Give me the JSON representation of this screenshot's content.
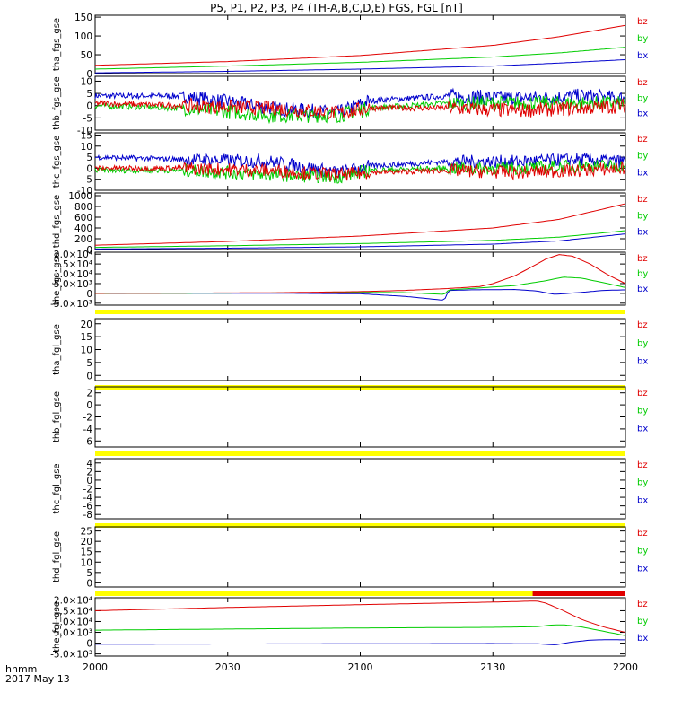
{
  "title": "P5, P1, P2, P3, P4 (TH-A,B,C,D,E) FGS, FGL [nT]",
  "time_axis": {
    "label_line1": "hhmm",
    "label_line2": "2017 May 13",
    "ticks": [
      "2000",
      "2030",
      "2100",
      "2130",
      "2200"
    ],
    "range_minutes": [
      0,
      120
    ]
  },
  "colors": {
    "bz": "#e00000",
    "by": "#00cc00",
    "bx": "#0000cc",
    "flag_yellow": "#ffff00",
    "flag_red": "#e00000"
  },
  "chart_data": [
    {
      "type": "line",
      "name": "tha_fgs_gse",
      "ylim": [
        0,
        155
      ],
      "yticks": [
        "0",
        "50",
        "100",
        "150"
      ],
      "yvals": [
        0,
        50,
        100,
        150
      ],
      "legend": [
        "bz",
        "by",
        "bx"
      ],
      "series": [
        {
          "name": "bz",
          "x": [
            0,
            30,
            60,
            90,
            105,
            120
          ],
          "y": [
            22,
            32,
            48,
            75,
            98,
            128
          ]
        },
        {
          "name": "by",
          "x": [
            0,
            30,
            60,
            90,
            105,
            120
          ],
          "y": [
            12,
            20,
            30,
            44,
            55,
            70
          ]
        },
        {
          "name": "bx",
          "x": [
            0,
            30,
            60,
            90,
            105,
            120
          ],
          "y": [
            2,
            6,
            12,
            20,
            28,
            37
          ]
        }
      ]
    },
    {
      "type": "line",
      "name": "thb_fgs_gse",
      "ylim": [
        -10,
        12
      ],
      "yticks": [
        "-10",
        "-5",
        "0",
        "5",
        "10"
      ],
      "yvals": [
        -10,
        -5,
        0,
        5,
        10
      ],
      "legend": [
        "bz",
        "by",
        "bx"
      ],
      "series": [
        {
          "name": "bz",
          "x": [
            0,
            20,
            40,
            55,
            62,
            80,
            95,
            110,
            120
          ],
          "y": [
            1,
            0,
            -1,
            -3,
            -1,
            -1,
            -2,
            -1,
            0
          ]
        },
        {
          "name": "by",
          "x": [
            0,
            20,
            40,
            55,
            62,
            80,
            95,
            110,
            120
          ],
          "y": [
            0,
            -1,
            -4,
            -4,
            -1,
            1,
            1,
            1,
            1
          ]
        },
        {
          "name": "bx",
          "x": [
            0,
            20,
            40,
            55,
            62,
            80,
            95,
            110,
            120
          ],
          "y": [
            4,
            4,
            -1,
            -3,
            2,
            4,
            3,
            4,
            3
          ]
        }
      ]
    },
    {
      "type": "line",
      "name": "thc_fgs_gse",
      "ylim": [
        -10,
        16
      ],
      "yticks": [
        "-10",
        "-5",
        "0",
        "5",
        "10",
        "15"
      ],
      "yvals": [
        -10,
        -5,
        0,
        5,
        10,
        15
      ],
      "legend": [
        "bz",
        "by",
        "bx"
      ],
      "series": [
        {
          "name": "bz",
          "x": [
            0,
            20,
            40,
            55,
            62,
            80,
            95,
            110,
            120
          ],
          "y": [
            0,
            0,
            -1,
            -3,
            -2,
            -1,
            -2,
            -1,
            0
          ]
        },
        {
          "name": "by",
          "x": [
            0,
            20,
            40,
            55,
            62,
            80,
            95,
            110,
            120
          ],
          "y": [
            -1,
            -1,
            -3,
            -4,
            -1,
            0,
            0,
            1,
            1
          ]
        },
        {
          "name": "bx",
          "x": [
            0,
            20,
            40,
            55,
            62,
            80,
            95,
            110,
            120
          ],
          "y": [
            5,
            4,
            3,
            -2,
            1,
            3,
            3,
            4,
            3
          ]
        }
      ]
    },
    {
      "type": "line",
      "name": "thd_fgs_gse",
      "ylim": [
        0,
        1050
      ],
      "yticks": [
        "0",
        "200",
        "400",
        "600",
        "800",
        "1000"
      ],
      "yvals": [
        0,
        200,
        400,
        600,
        800,
        1000
      ],
      "legend": [
        "bz",
        "by",
        "bx"
      ],
      "series": [
        {
          "name": "bz",
          "x": [
            0,
            30,
            60,
            90,
            105,
            120
          ],
          "y": [
            80,
            150,
            250,
            400,
            560,
            850
          ]
        },
        {
          "name": "by",
          "x": [
            0,
            30,
            60,
            90,
            105,
            120
          ],
          "y": [
            40,
            70,
            110,
            170,
            230,
            350
          ]
        },
        {
          "name": "bx",
          "x": [
            0,
            30,
            60,
            90,
            105,
            120
          ],
          "y": [
            10,
            25,
            50,
            100,
            160,
            290
          ]
        }
      ]
    },
    {
      "type": "line",
      "name": "the_fgs_gse",
      "ylim": [
        -6000,
        21000
      ],
      "yticks": [
        "-5.0×10³",
        "0",
        "5.0×10³",
        "1.0×10⁴",
        "1.5×10⁴",
        "2.0×10⁴"
      ],
      "yvals": [
        -5000,
        0,
        5000,
        10000,
        15000,
        20000
      ],
      "legend": [
        "bz",
        "by",
        "bx"
      ],
      "flag_bar": {
        "color": "yellow",
        "x_range": [
          0,
          120
        ]
      },
      "series": [
        {
          "name": "bz",
          "x": [
            0,
            40,
            60,
            70,
            80,
            87,
            90,
            95,
            100,
            102,
            105,
            108,
            112,
            116,
            120
          ],
          "y": [
            0,
            300,
            900,
            1500,
            2500,
            3500,
            5000,
            9000,
            15000,
            17500,
            19800,
            19000,
            15000,
            9500,
            5000
          ]
        },
        {
          "name": "by",
          "x": [
            0,
            40,
            60,
            70,
            79,
            80,
            85,
            95,
            102,
            106,
            110,
            115,
            120
          ],
          "y": [
            0,
            200,
            500,
            400,
            -500,
            1800,
            2500,
            4000,
            6500,
            8300,
            7800,
            5500,
            3000
          ]
        },
        {
          "name": "bx",
          "x": [
            0,
            40,
            60,
            70,
            79,
            80,
            85,
            95,
            100,
            104,
            110,
            115,
            120
          ],
          "y": [
            0,
            100,
            -200,
            -1500,
            -3500,
            1500,
            1800,
            2000,
            1200,
            -500,
            500,
            1500,
            1800
          ]
        }
      ]
    },
    {
      "type": "line",
      "name": "tha_fgl_gse",
      "ylim": [
        -2,
        22
      ],
      "yticks": [
        "0",
        "5",
        "10",
        "15",
        "20"
      ],
      "yvals": [
        0,
        5,
        10,
        15,
        20
      ],
      "legend": [
        "bz",
        "by",
        "bx"
      ],
      "flag_bar": {
        "color": "yellow",
        "x_range": [
          0,
          120
        ]
      },
      "series": []
    },
    {
      "type": "line",
      "name": "thb_fgl_gse",
      "ylim": [
        -7,
        3
      ],
      "yticks": [
        "-6",
        "-4",
        "-2",
        "0",
        "2"
      ],
      "yvals": [
        -6,
        -4,
        -2,
        0,
        2
      ],
      "legend": [
        "bz",
        "by",
        "bx"
      ],
      "flag_bar": {
        "color": "yellow",
        "x_range": [
          0,
          120
        ]
      },
      "series": []
    },
    {
      "type": "line",
      "name": "thc_fgl_gse",
      "ylim": [
        -9,
        5
      ],
      "yticks": [
        "-8",
        "-6",
        "-4",
        "-2",
        "0",
        "2",
        "4"
      ],
      "yvals": [
        -8,
        -6,
        -4,
        -2,
        0,
        2,
        4
      ],
      "legend": [
        "bz",
        "by",
        "bx"
      ],
      "flag_bar": {
        "color": "yellow",
        "x_range": [
          0,
          120
        ]
      },
      "series": []
    },
    {
      "type": "line",
      "name": "thd_fgl_gse",
      "ylim": [
        -2,
        27
      ],
      "yticks": [
        "0",
        "5",
        "10",
        "15",
        "20",
        "25"
      ],
      "yvals": [
        0,
        5,
        10,
        15,
        20,
        25
      ],
      "legend": [
        "bz",
        "by",
        "bx"
      ],
      "flag_bar": {
        "color": "yellow",
        "x_range": [
          0,
          120
        ],
        "red_x_range": [
          99,
          120
        ]
      },
      "series": []
    },
    {
      "type": "line",
      "name": "the_fgl_gse",
      "ylim": [
        -6000,
        21000
      ],
      "yticks": [
        "-5.0×10³",
        "0",
        "5.0×10³",
        "1.0×10⁴",
        "1.5×10⁴",
        "2.0×10⁴"
      ],
      "yvals": [
        -5000,
        0,
        5000,
        10000,
        15000,
        20000
      ],
      "legend": [
        "bz",
        "by",
        "bx"
      ],
      "series": [
        {
          "name": "bz",
          "x": [
            0,
            30,
            60,
            90,
            100,
            102,
            106,
            110,
            115,
            120
          ],
          "y": [
            15000,
            16500,
            17800,
            19000,
            19500,
            18500,
            15000,
            11000,
            7500,
            5000
          ]
        },
        {
          "name": "by",
          "x": [
            0,
            30,
            60,
            90,
            100,
            103,
            106,
            110,
            115,
            120
          ],
          "y": [
            6000,
            6500,
            7000,
            7300,
            7600,
            8300,
            8500,
            7500,
            5500,
            3500
          ]
        },
        {
          "name": "bx",
          "x": [
            0,
            30,
            60,
            90,
            100,
            104,
            108,
            112,
            116,
            120
          ],
          "y": [
            -500,
            -400,
            -300,
            -200,
            -300,
            -800,
            500,
            1400,
            1600,
            1500
          ]
        }
      ]
    }
  ]
}
